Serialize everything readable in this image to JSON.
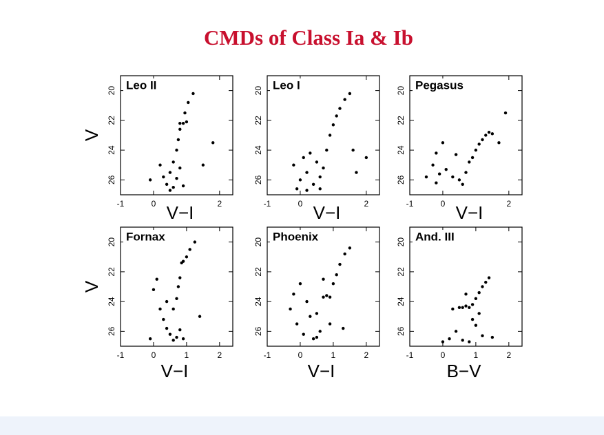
{
  "title": "CMDs of Class Ia & Ib",
  "chart_data": [
    {
      "type": "scatter",
      "title": "Leo II",
      "xlabel": "V−I",
      "ylabel": "V",
      "xlim": [
        -1,
        2.4
      ],
      "xticks": [
        -1,
        0,
        2
      ],
      "ylim": [
        27,
        19
      ],
      "yticks": [
        20,
        22,
        24,
        26
      ],
      "color": "#000000",
      "x": [
        0.3,
        0.5,
        0.7,
        0.4,
        0.6,
        0.8,
        0.2,
        0.6,
        0.7,
        0.75,
        0.8,
        0.9,
        0.8,
        1.0,
        0.95,
        1.05,
        1.2,
        -0.1,
        1.5,
        1.8,
        0.5,
        0.9
      ],
      "y": [
        25.8,
        25.5,
        25.9,
        26.3,
        26.5,
        25.2,
        25.0,
        24.8,
        24.0,
        23.3,
        22.6,
        22.2,
        22.2,
        22.1,
        21.5,
        20.8,
        20.2,
        26.0,
        25.0,
        23.5,
        26.7,
        26.4
      ]
    },
    {
      "type": "scatter",
      "title": "Leo I",
      "xlabel": "V−I",
      "xlim": [
        -1,
        2.4
      ],
      "xticks": [
        -1,
        0,
        2
      ],
      "ylim": [
        27,
        19
      ],
      "yticks": [
        20,
        22,
        24,
        26
      ],
      "color": "#000000",
      "x": [
        -0.2,
        0.0,
        0.2,
        0.4,
        0.6,
        0.1,
        0.3,
        0.5,
        -0.1,
        0.7,
        0.8,
        0.9,
        1.0,
        1.1,
        1.2,
        1.35,
        1.5,
        1.7,
        2.0,
        1.6,
        0.2,
        0.6
      ],
      "y": [
        25.0,
        26.0,
        25.5,
        26.3,
        25.8,
        24.5,
        24.2,
        24.8,
        26.6,
        25.2,
        24.0,
        23.0,
        22.3,
        21.7,
        21.2,
        20.6,
        20.2,
        25.5,
        24.5,
        24.0,
        26.7,
        26.6
      ]
    },
    {
      "type": "scatter",
      "title": "Pegasus",
      "xlabel": "V−I",
      "xlim": [
        -1,
        2.4
      ],
      "xticks": [
        -1,
        0,
        2
      ],
      "ylim": [
        27,
        19
      ],
      "yticks": [
        20,
        22,
        24,
        26
      ],
      "color": "#000000",
      "x": [
        -0.3,
        -0.2,
        -0.1,
        0.0,
        -0.2,
        0.1,
        0.3,
        0.5,
        0.7,
        0.8,
        0.9,
        1.0,
        1.1,
        1.2,
        1.3,
        1.4,
        1.5,
        1.7,
        0.6,
        0.4,
        1.9,
        -0.5
      ],
      "y": [
        25.0,
        24.2,
        25.6,
        23.5,
        26.2,
        25.3,
        25.8,
        26.0,
        25.5,
        24.8,
        24.5,
        24.0,
        23.6,
        23.3,
        23.0,
        22.8,
        22.9,
        23.5,
        26.3,
        24.3,
        21.5,
        25.8
      ]
    },
    {
      "type": "scatter",
      "title": "Fornax",
      "xlabel": "V−I",
      "ylabel": "V",
      "xlim": [
        -1,
        2.4
      ],
      "xticks": [
        -1,
        0,
        1,
        2
      ],
      "ylim": [
        27,
        19
      ],
      "yticks": [
        20,
        22,
        24,
        26
      ],
      "color": "#000000",
      "x": [
        0.0,
        0.2,
        0.3,
        0.4,
        0.5,
        0.6,
        0.7,
        0.8,
        0.9,
        0.6,
        0.7,
        0.75,
        0.8,
        0.85,
        0.9,
        1.0,
        1.1,
        1.25,
        0.1,
        0.4,
        -0.1,
        1.4
      ],
      "y": [
        23.2,
        24.5,
        25.2,
        25.8,
        26.2,
        26.6,
        26.4,
        25.9,
        26.5,
        24.5,
        23.8,
        23.0,
        22.4,
        21.4,
        21.3,
        21.0,
        20.5,
        20.0,
        22.5,
        24.0,
        26.5,
        25.0
      ]
    },
    {
      "type": "scatter",
      "title": "Phoenix",
      "xlabel": "V−I",
      "xlim": [
        -1,
        2.4
      ],
      "xticks": [
        -1,
        0,
        1,
        2
      ],
      "ylim": [
        27,
        19
      ],
      "yticks": [
        20,
        22,
        24,
        26
      ],
      "color": "#000000",
      "x": [
        -0.3,
        -0.2,
        -0.1,
        0.0,
        0.1,
        0.3,
        0.5,
        0.6,
        0.7,
        0.8,
        0.9,
        1.0,
        1.1,
        1.2,
        1.35,
        1.5,
        0.4,
        0.2,
        0.9,
        0.5,
        1.3,
        0.7
      ],
      "y": [
        24.5,
        23.5,
        25.5,
        22.8,
        26.2,
        25.0,
        24.8,
        26.0,
        23.7,
        23.6,
        23.7,
        22.8,
        22.2,
        21.5,
        20.8,
        20.4,
        26.5,
        24.0,
        25.5,
        26.4,
        25.8,
        22.5
      ]
    },
    {
      "type": "scatter",
      "title": "And. III",
      "xlabel": "B−V",
      "xlim": [
        -1,
        2.4
      ],
      "xticks": [
        -1,
        0,
        1,
        2
      ],
      "ylim": [
        27,
        19
      ],
      "yticks": [
        20,
        22,
        24,
        26
      ],
      "color": "#000000",
      "x": [
        0.3,
        0.5,
        0.6,
        0.7,
        0.8,
        0.9,
        1.0,
        1.1,
        1.2,
        1.3,
        1.4,
        0.9,
        1.0,
        0.4,
        0.2,
        0.6,
        1.2,
        1.5,
        0.0,
        0.8,
        1.1,
        0.7
      ],
      "y": [
        24.5,
        24.4,
        24.4,
        24.3,
        24.4,
        24.2,
        23.8,
        23.4,
        23.0,
        22.7,
        22.4,
        25.2,
        25.6,
        26.0,
        26.5,
        26.6,
        26.3,
        26.4,
        26.7,
        26.7,
        24.8,
        23.5
      ]
    }
  ]
}
